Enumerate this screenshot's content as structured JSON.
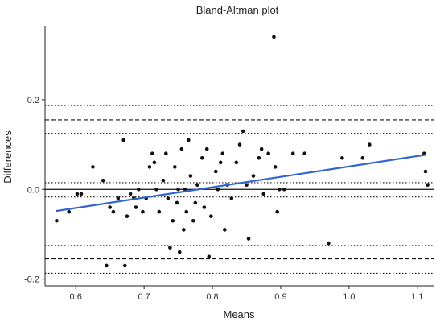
{
  "chart_data": {
    "type": "scatter",
    "title": "Bland-Altman plot",
    "xlabel": "Means",
    "ylabel": "Differences",
    "xlim": [
      0.555,
      1.125
    ],
    "ylim": [
      -0.215,
      0.365
    ],
    "x_ticks": [
      0.6,
      0.7,
      0.8,
      0.9,
      1.0,
      1.1
    ],
    "x_tick_labels": [
      "0.6",
      "0.7",
      "0.8",
      "0.9",
      "1.0",
      "1.1"
    ],
    "y_ticks": [
      -0.2,
      0.0,
      0.2
    ],
    "y_tick_labels": [
      "-0.2",
      "0.0",
      "0.2"
    ],
    "grid": false,
    "legend": "none",
    "colors": {
      "points": "#111111",
      "regression": "#3366cc",
      "reference": "#111111"
    },
    "reference_lines": [
      {
        "y": 0.0,
        "style": "solid"
      },
      {
        "y": 0.187,
        "style": "dotted"
      },
      {
        "y": 0.155,
        "style": "dashed"
      },
      {
        "y": 0.125,
        "style": "dotted"
      },
      {
        "y": 0.015,
        "style": "dotted"
      },
      {
        "y": -0.017,
        "style": "dotted"
      },
      {
        "y": -0.125,
        "style": "dotted"
      },
      {
        "y": -0.155,
        "style": "dashed"
      },
      {
        "y": -0.187,
        "style": "dotted"
      }
    ],
    "regression_line": {
      "x": [
        0.572,
        1.112
      ],
      "y": [
        -0.048,
        0.077
      ]
    },
    "points": [
      {
        "x": 0.572,
        "y": -0.07
      },
      {
        "x": 0.59,
        "y": -0.05
      },
      {
        "x": 0.602,
        "y": -0.01
      },
      {
        "x": 0.608,
        "y": -0.01
      },
      {
        "x": 0.625,
        "y": 0.05
      },
      {
        "x": 0.64,
        "y": 0.02
      },
      {
        "x": 0.645,
        "y": -0.17
      },
      {
        "x": 0.65,
        "y": -0.04
      },
      {
        "x": 0.655,
        "y": -0.05
      },
      {
        "x": 0.662,
        "y": -0.02
      },
      {
        "x": 0.67,
        "y": 0.11
      },
      {
        "x": 0.672,
        "y": -0.17
      },
      {
        "x": 0.675,
        "y": -0.06
      },
      {
        "x": 0.68,
        "y": -0.01
      },
      {
        "x": 0.685,
        "y": -0.02
      },
      {
        "x": 0.688,
        "y": -0.04
      },
      {
        "x": 0.692,
        "y": 0.0
      },
      {
        "x": 0.698,
        "y": -0.05
      },
      {
        "x": 0.703,
        "y": -0.02
      },
      {
        "x": 0.708,
        "y": 0.05
      },
      {
        "x": 0.712,
        "y": 0.08
      },
      {
        "x": 0.715,
        "y": 0.06
      },
      {
        "x": 0.718,
        "y": 0.0
      },
      {
        "x": 0.722,
        "y": -0.05
      },
      {
        "x": 0.728,
        "y": 0.02
      },
      {
        "x": 0.732,
        "y": 0.08
      },
      {
        "x": 0.735,
        "y": -0.02
      },
      {
        "x": 0.738,
        "y": -0.13
      },
      {
        "x": 0.742,
        "y": -0.07
      },
      {
        "x": 0.745,
        "y": 0.05
      },
      {
        "x": 0.748,
        "y": -0.03
      },
      {
        "x": 0.75,
        "y": 0.0
      },
      {
        "x": 0.752,
        "y": -0.14
      },
      {
        "x": 0.755,
        "y": 0.09
      },
      {
        "x": 0.758,
        "y": -0.09
      },
      {
        "x": 0.76,
        "y": 0.0
      },
      {
        "x": 0.762,
        "y": -0.05
      },
      {
        "x": 0.765,
        "y": 0.11
      },
      {
        "x": 0.768,
        "y": 0.03
      },
      {
        "x": 0.772,
        "y": -0.07
      },
      {
        "x": 0.775,
        "y": -0.03
      },
      {
        "x": 0.778,
        "y": 0.01
      },
      {
        "x": 0.785,
        "y": 0.07
      },
      {
        "x": 0.788,
        "y": -0.04
      },
      {
        "x": 0.792,
        "y": 0.09
      },
      {
        "x": 0.795,
        "y": -0.15
      },
      {
        "x": 0.798,
        "y": -0.06
      },
      {
        "x": 0.805,
        "y": 0.04
      },
      {
        "x": 0.808,
        "y": 0.0
      },
      {
        "x": 0.812,
        "y": 0.06
      },
      {
        "x": 0.815,
        "y": 0.08
      },
      {
        "x": 0.818,
        "y": -0.09
      },
      {
        "x": 0.822,
        "y": 0.01
      },
      {
        "x": 0.828,
        "y": -0.02
      },
      {
        "x": 0.835,
        "y": 0.06
      },
      {
        "x": 0.84,
        "y": 0.1
      },
      {
        "x": 0.845,
        "y": 0.13
      },
      {
        "x": 0.85,
        "y": 0.01
      },
      {
        "x": 0.853,
        "y": -0.11
      },
      {
        "x": 0.86,
        "y": 0.03
      },
      {
        "x": 0.868,
        "y": 0.07
      },
      {
        "x": 0.872,
        "y": 0.09
      },
      {
        "x": 0.875,
        "y": -0.01
      },
      {
        "x": 0.882,
        "y": 0.08
      },
      {
        "x": 0.89,
        "y": 0.34
      },
      {
        "x": 0.892,
        "y": 0.05
      },
      {
        "x": 0.895,
        "y": -0.05
      },
      {
        "x": 0.898,
        "y": 0.0
      },
      {
        "x": 0.905,
        "y": 0.0
      },
      {
        "x": 0.918,
        "y": 0.08
      },
      {
        "x": 0.935,
        "y": 0.08
      },
      {
        "x": 0.97,
        "y": -0.12
      },
      {
        "x": 0.99,
        "y": 0.07
      },
      {
        "x": 1.02,
        "y": 0.07
      },
      {
        "x": 1.03,
        "y": 0.1
      },
      {
        "x": 1.11,
        "y": 0.08
      },
      {
        "x": 1.112,
        "y": 0.04
      },
      {
        "x": 1.115,
        "y": 0.01
      }
    ]
  }
}
